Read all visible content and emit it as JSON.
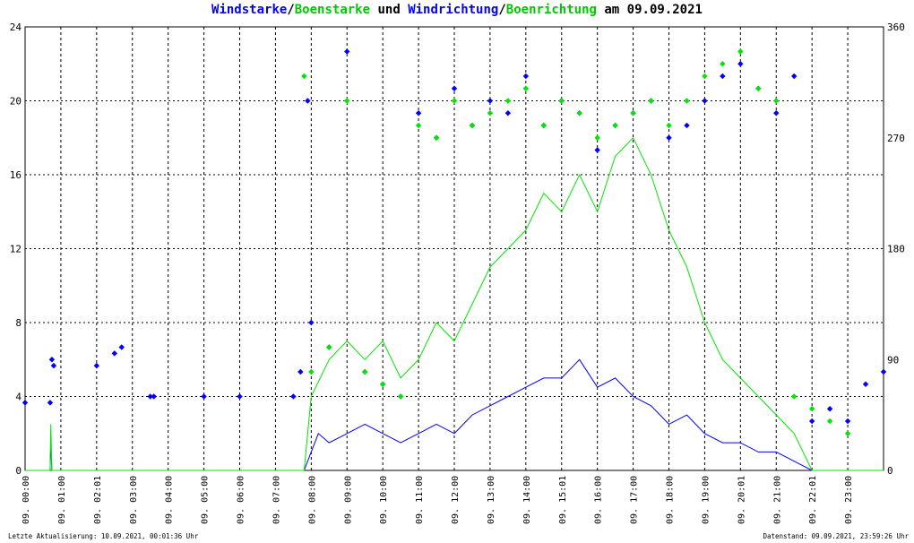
{
  "title": {
    "part1": "Windstarke",
    "sep1": "/",
    "part2": "Boenstarke",
    "part3": " und ",
    "part4": "Windrichtung",
    "sep2": "/",
    "part5": "Boenrichtung",
    "part6": " am 09.09.2021"
  },
  "footer": {
    "left": "Letzte Aktualisierung: 10.09.2021, 00:01:36 Uhr",
    "right": "Datenstand: 09.09.2021, 23:59:26 Uhr"
  },
  "colors": {
    "wind": "#0000ff",
    "gust": "#00e600",
    "grid": "#000000",
    "background": "#ffffff"
  },
  "chart_data": {
    "type": "line",
    "x_unit": "hour of day",
    "xlim": [
      0,
      24
    ],
    "ylim_left": [
      0,
      24
    ],
    "ylim_right": [
      0,
      360
    ],
    "y_ticks_left": [
      "0",
      "4",
      "8",
      "12",
      "16",
      "20",
      "24"
    ],
    "y_ticks_right": [
      "0",
      "90",
      "180",
      "270",
      "360"
    ],
    "x_tick_labels": [
      "09. 00:00",
      "09. 01:00",
      "09. 02:01",
      "09. 03:00",
      "09. 04:00",
      "09. 05:00",
      "09. 06:00",
      "09. 07:00",
      "09. 08:00",
      "09. 09:00",
      "09. 10:00",
      "09. 11:00",
      "09. 12:00",
      "09. 13:00",
      "09. 14:00",
      "09. 15:01",
      "09. 16:00",
      "09. 17:00",
      "09. 18:00",
      "09. 19:00",
      "09. 20:01",
      "09. 21:00",
      "09. 22:01",
      "09. 23:00"
    ],
    "grid": true,
    "series": [
      {
        "name": "Windstarke",
        "axis": "left",
        "kind": "line",
        "x": [
          0,
          0.7,
          0.72,
          0.75,
          0.8,
          2.0,
          2.5,
          3.5,
          5.0,
          6.0,
          7.5,
          7.8,
          8.0,
          8.2,
          8.5,
          9.0,
          9.5,
          10.0,
          10.5,
          11.0,
          11.5,
          12.0,
          12.5,
          13.0,
          13.5,
          14.0,
          14.5,
          15.0,
          15.5,
          16.0,
          16.5,
          17.0,
          17.5,
          18.0,
          18.5,
          19.0,
          19.5,
          20.0,
          20.5,
          21.0,
          21.5,
          22.0,
          22.5,
          23.0,
          23.5,
          24.0
        ],
        "values": [
          0,
          0,
          1.5,
          0,
          0,
          0,
          0,
          0,
          0,
          0,
          0,
          0,
          1.0,
          2.0,
          1.5,
          2.0,
          2.5,
          2.0,
          1.5,
          2.0,
          2.5,
          2.0,
          3.0,
          3.5,
          4.0,
          4.5,
          5.0,
          5.0,
          6.0,
          4.5,
          5.0,
          4.0,
          3.5,
          2.5,
          3.0,
          2.0,
          1.5,
          1.5,
          1.0,
          1.0,
          0.5,
          0,
          0,
          0,
          0,
          0
        ]
      },
      {
        "name": "Boenstarke",
        "axis": "left",
        "kind": "line",
        "x": [
          0,
          0.7,
          0.72,
          0.75,
          0.8,
          7.5,
          7.8,
          8.0,
          8.5,
          9.0,
          9.5,
          10.0,
          10.5,
          11.0,
          11.5,
          12.0,
          12.5,
          13.0,
          13.5,
          14.0,
          14.5,
          15.0,
          15.5,
          16.0,
          16.5,
          17.0,
          17.5,
          18.0,
          18.5,
          19.0,
          19.5,
          20.0,
          20.5,
          21.0,
          21.5,
          22.0,
          24.0
        ],
        "values": [
          0,
          0,
          2.5,
          0,
          0,
          0,
          0,
          4.0,
          6.0,
          7.0,
          6.0,
          7.0,
          5.0,
          6.0,
          8.0,
          7.0,
          9.0,
          11.0,
          12.0,
          13.0,
          15.0,
          14.0,
          16.0,
          14.0,
          17.0,
          18.0,
          16.0,
          13.0,
          11.0,
          8.0,
          6.0,
          5.0,
          4.0,
          3.0,
          2.0,
          0,
          0
        ]
      },
      {
        "name": "Windrichtung",
        "axis": "right",
        "kind": "scatter",
        "x": [
          0,
          0.7,
          0.75,
          0.8,
          2.0,
          2.5,
          2.7,
          3.5,
          3.6,
          5.0,
          6.0,
          7.5,
          7.7,
          7.9,
          8.0,
          8.5,
          9.0,
          9.5,
          10.0,
          10.5,
          11.0,
          11.5,
          12.0,
          12.5,
          13.0,
          13.5,
          14.0,
          14.5,
          15.0,
          15.5,
          16.0,
          16.5,
          17.0,
          17.5,
          18.0,
          18.5,
          19.0,
          19.5,
          20.0,
          20.5,
          21.0,
          21.5,
          22.0,
          22.5,
          23.0,
          23.5,
          24.0
        ],
        "values": [
          55,
          55,
          90,
          85,
          85,
          95,
          100,
          60,
          60,
          60,
          60,
          60,
          80,
          300,
          120,
          100,
          340,
          80,
          70,
          60,
          290,
          270,
          310,
          280,
          300,
          290,
          320,
          280,
          300,
          290,
          260,
          280,
          290,
          300,
          270,
          280,
          300,
          320,
          330,
          310,
          290,
          320,
          40,
          50,
          40,
          70,
          80
        ]
      },
      {
        "name": "Boenrichtung",
        "axis": "right",
        "kind": "scatter",
        "x": [
          7.8,
          8.0,
          8.5,
          9.0,
          9.5,
          10.0,
          10.5,
          11.0,
          11.5,
          12.0,
          12.5,
          13.0,
          13.5,
          14.0,
          14.5,
          15.0,
          15.5,
          16.0,
          16.5,
          17.0,
          17.5,
          18.0,
          18.5,
          19.0,
          19.5,
          20.0,
          20.5,
          21.0,
          21.5,
          22.0,
          22.5,
          23.0
        ],
        "values": [
          320,
          80,
          100,
          300,
          80,
          70,
          60,
          280,
          270,
          300,
          280,
          290,
          300,
          310,
          280,
          300,
          290,
          270,
          280,
          290,
          300,
          280,
          300,
          320,
          330,
          340,
          310,
          300,
          60,
          50,
          40,
          30
        ]
      }
    ]
  }
}
